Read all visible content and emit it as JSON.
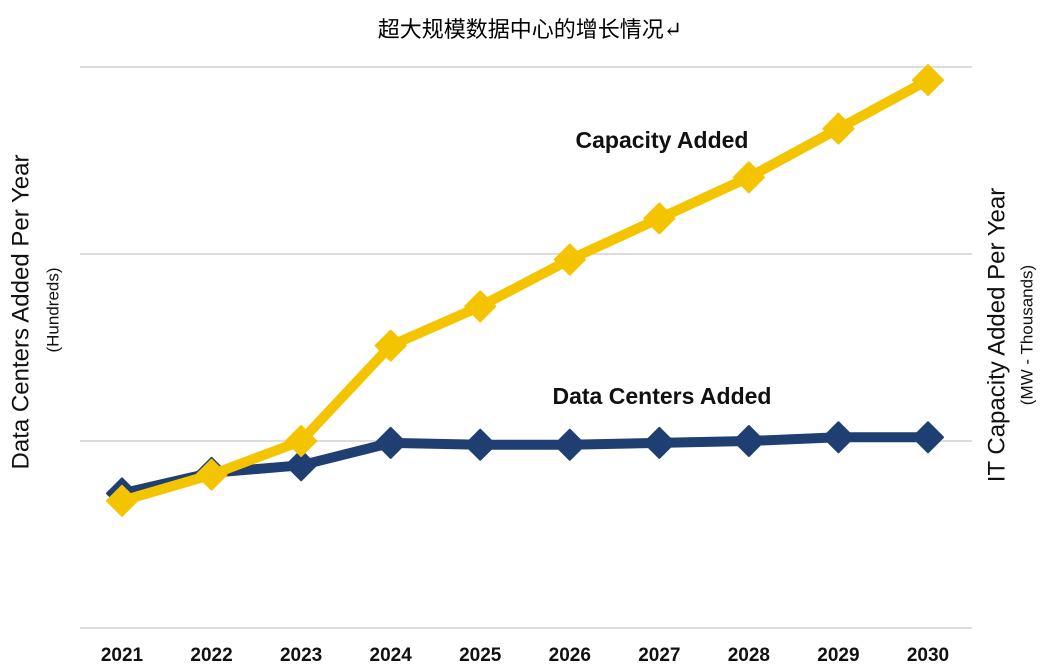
{
  "chart_data": {
    "type": "line",
    "title": "超大规模数据中心的增长情况↵",
    "y_label": "Data Centers Added Per Year",
    "y_sublabel": "(Hundreds)",
    "y2_label": "IT Capacity Added Per Year",
    "y2_sublabel": "(MW - Thousands)",
    "categories": [
      "2021",
      "2022",
      "2023",
      "2024",
      "2025",
      "2026",
      "2027",
      "2028",
      "2029",
      "2030"
    ],
    "series": [
      {
        "name": "Data Centers Added",
        "color": "#1f3f73",
        "values": [
          0.72,
          0.83,
          0.87,
          0.99,
          0.98,
          0.98,
          0.99,
          1.0,
          1.02,
          1.02
        ]
      },
      {
        "name": "Capacity Added",
        "color": "#f5c400",
        "axis": "y2",
        "values": [
          0.68,
          0.82,
          1.0,
          1.51,
          1.72,
          1.97,
          2.19,
          2.41,
          2.67,
          2.93
        ]
      }
    ],
    "ylim": [
      0,
      3
    ],
    "yticks": [
      0,
      1,
      2,
      3
    ],
    "y2lim": [
      0,
      3
    ],
    "y2ticks": [
      0,
      1,
      2,
      3
    ],
    "grid": true,
    "show_tick_labels": false
  }
}
